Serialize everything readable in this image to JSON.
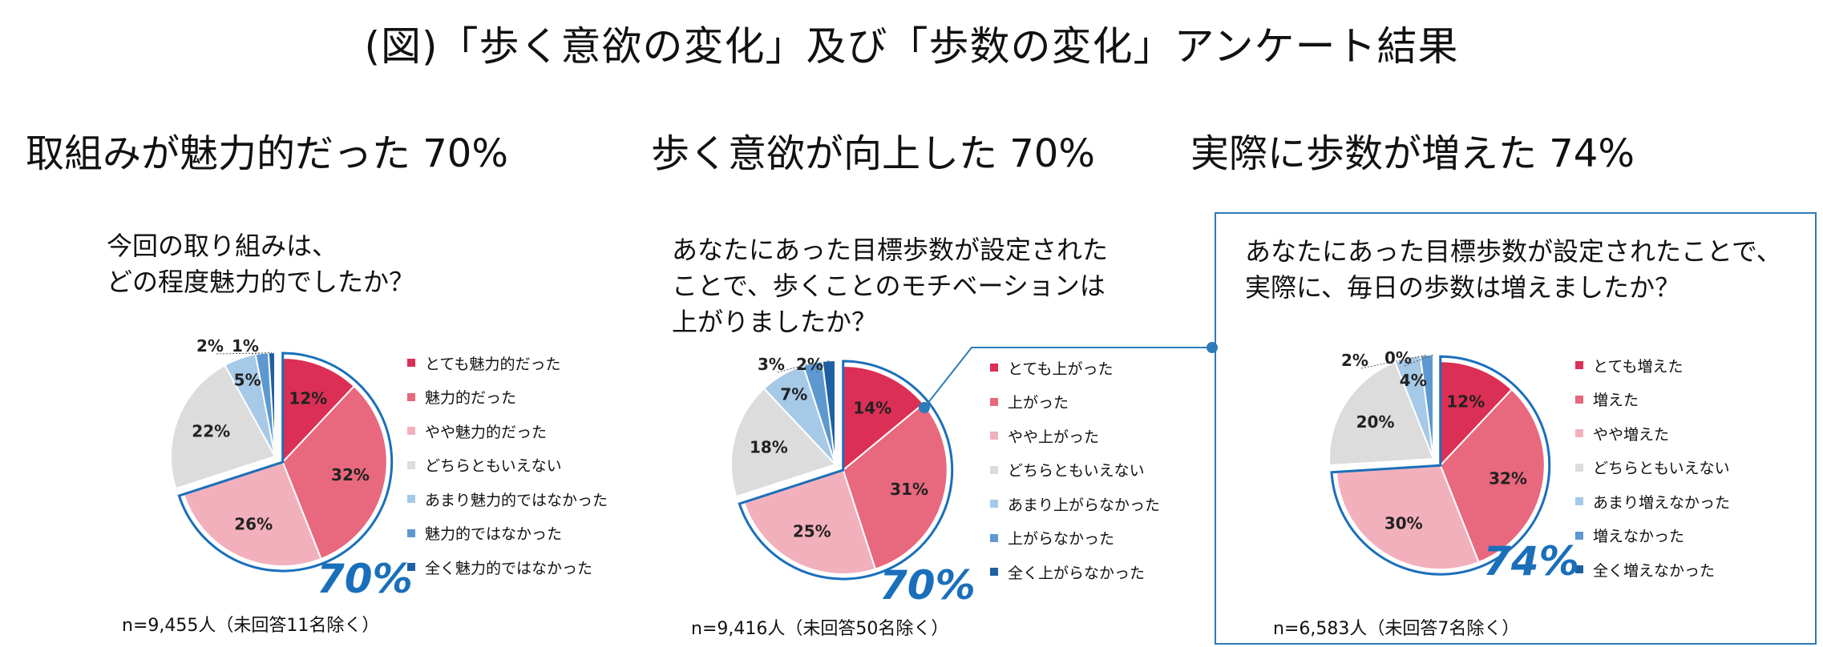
{
  "title": "(図)「歩く意欲の変化」及び「歩数の変化」アンケート結果",
  "colors": [
    "#dc2f55",
    "#e8687e",
    "#f2b0bd",
    "#dcdcdc",
    "#a7c9e8",
    "#5d99d0",
    "#1f5fa3"
  ],
  "panels": [
    {
      "heading": "取組みが魅力的だった 70%",
      "question": [
        "今回の取り組みは、",
        "どの程度魅力的でしたか？"
      ],
      "highlight": "70%",
      "note": "n=9,455人（未回答11名除く）",
      "legend": [
        "とても魅力的だった",
        "魅力的だった",
        "やや魅力的だった",
        "どちらともいえない",
        "あまり魅力的ではなかった",
        "魅力的ではなかった",
        "全く魅力的ではなかった"
      ]
    },
    {
      "heading": "歩く意欲が向上した 70%",
      "question": [
        "あなたにあった目標歩数が設定された",
        "ことで、歩くことのモチベーションは",
        "上がりましたか？"
      ],
      "highlight": "70%",
      "note": "n=9,416人（未回答50名除く）",
      "legend": [
        "とても上がった",
        "上がった",
        "やや上がった",
        "どちらともいえない",
        "あまり上がらなかった",
        "上がらなかった",
        "全く上がらなかった"
      ]
    },
    {
      "heading": "実際に歩数が増えた 74%",
      "question": [
        "あなたにあった目標歩数が設定されたことで、",
        "実際に、毎日の歩数は増えましたか？"
      ],
      "highlight": "74%",
      "note": "n=6,583人（未回答7名除く）",
      "legend": [
        "とても増えた",
        "増えた",
        "やや増えた",
        "どちらともいえない",
        "あまり増えなかった",
        "増えなかった",
        "全く増えなかった"
      ]
    }
  ],
  "chart_data": [
    {
      "type": "pie",
      "title": "今回の取り組みは、どの程度魅力的でしたか？",
      "categories": [
        "とても魅力的だった",
        "魅力的だった",
        "やや魅力的だった",
        "どちらともいえない",
        "あまり魅力的ではなかった",
        "魅力的ではなかった",
        "全く魅力的ではなかった"
      ],
      "values": [
        12,
        32,
        26,
        22,
        5,
        2,
        1
      ],
      "labels": [
        "12%",
        "32%",
        "26%",
        "22%",
        "5%",
        "2%",
        "1%"
      ],
      "highlight_total": "70%",
      "n": "n=9,455人（未回答11名除く）"
    },
    {
      "type": "pie",
      "title": "あなたにあった目標歩数が設定されたことで、歩くことのモチベーションは上がりましたか？",
      "categories": [
        "とても上がった",
        "上がった",
        "やや上がった",
        "どちらともいえない",
        "あまり上がらなかった",
        "上がらなかった",
        "全く上がらなかった"
      ],
      "values": [
        14,
        31,
        25,
        18,
        7,
        3,
        2
      ],
      "labels": [
        "14%",
        "31%",
        "25%",
        "18%",
        "7%",
        "3%",
        "2%"
      ],
      "highlight_total": "70%",
      "n": "n=9,416人（未回答50名除く）"
    },
    {
      "type": "pie",
      "title": "あなたにあった目標歩数が設定されたことで、実際に、毎日の歩数は増えましたか？",
      "categories": [
        "とても増えた",
        "増えた",
        "やや増えた",
        "どちらともいえない",
        "あまり増えなかった",
        "増えなかった",
        "全く増えなかった"
      ],
      "values": [
        12,
        32,
        30,
        20,
        4,
        2,
        0
      ],
      "labels": [
        "12%",
        "32%",
        "30%",
        "20%",
        "4%",
        "2%",
        "0%"
      ],
      "highlight_total": "74%",
      "n": "n=6,583人（未回答7名除く）"
    }
  ]
}
